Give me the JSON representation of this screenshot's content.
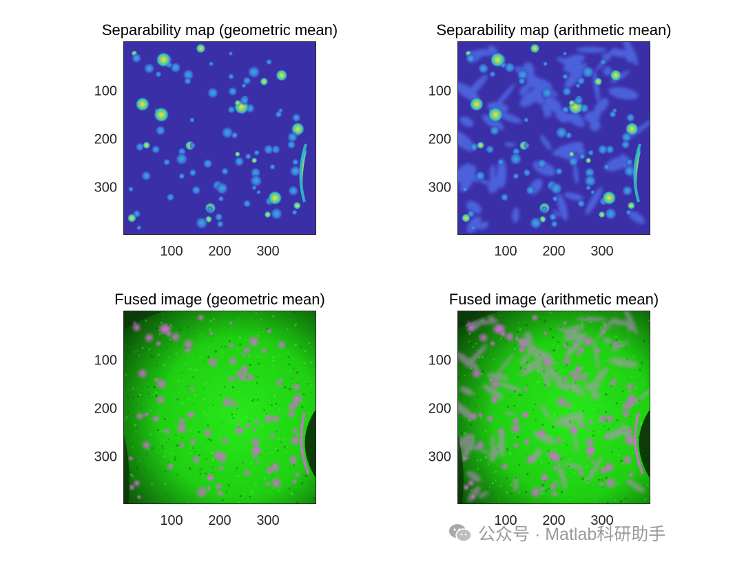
{
  "panels": [
    {
      "title": "Separability map (geometric mean)",
      "kind": "map",
      "blobs": "sparse"
    },
    {
      "title": "Separability map (arithmetic mean)",
      "kind": "map",
      "blobs": "dense"
    },
    {
      "title": "Fused image (geometric mean)",
      "kind": "fused",
      "blobs": "sparse"
    },
    {
      "title": "Fused image (arithmetic mean)",
      "kind": "fused",
      "blobs": "dense"
    }
  ],
  "y_ticks": [
    "100",
    "200",
    "300"
  ],
  "x_ticks": [
    "100",
    "200",
    "300"
  ],
  "colors": {
    "map_background": "#3b2fa8",
    "map_blob_mid": "#2fb7c9",
    "map_blob_hot": "#f5e13a",
    "fused_green": "#1fcf12",
    "fused_dark": "#0b4a08",
    "fused_magenta": "#d36ad8"
  },
  "watermark": {
    "text": "公众号 · Matlab科研助手",
    "icon": "wechat-icon"
  }
}
